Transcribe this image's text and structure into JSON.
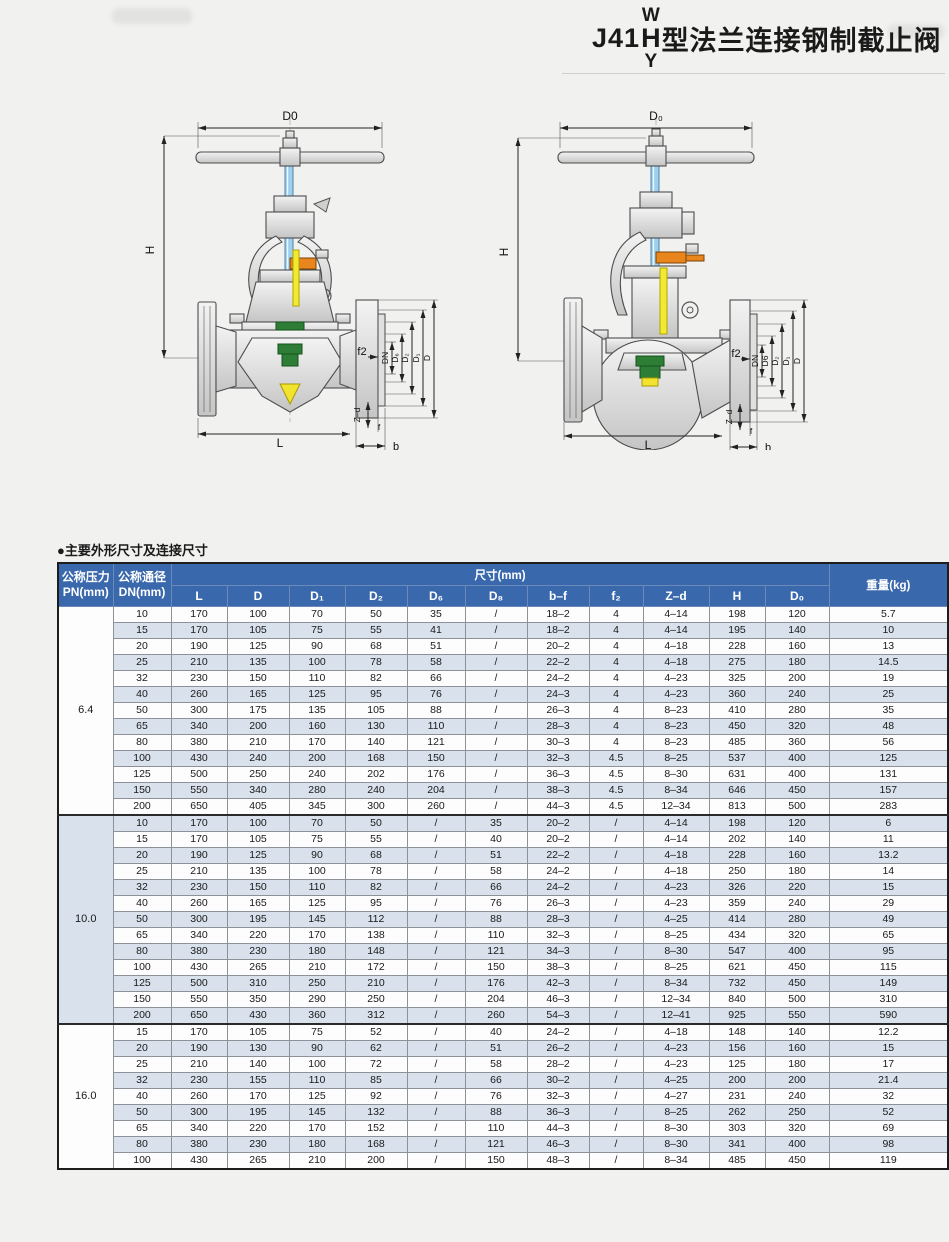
{
  "title": {
    "prefix": "J41",
    "stack_top": "W",
    "stack_mid": "H",
    "stack_bottom": "Y",
    "suffix": "型法兰连接钢制截止阀"
  },
  "section": {
    "title": "●主要外形尺寸及连接尺寸"
  },
  "drawings": {
    "left": {
      "labels": {
        "d0": "D0",
        "h": "H",
        "f2": "f2",
        "dn": "DN",
        "d6": "D₆",
        "d2": "D₂",
        "d1": "D₁",
        "d": "D",
        "zd": "Z–d",
        "f": "f",
        "b": "b",
        "l": "L"
      }
    },
    "right": {
      "labels": {
        "d0": "D₀",
        "h": "H",
        "f2": "f2",
        "dn": "DN",
        "d6": "D6",
        "d2": "D₂",
        "d1": "D₁",
        "d": "D",
        "zd": "Z–d",
        "f": "f",
        "b": "b",
        "l": "L"
      }
    }
  },
  "table": {
    "header": {
      "pressure_line1": "公称压力",
      "pressure_line2": "PN(mm)",
      "dn_line1": "公称通径",
      "dn_line2": "DN(mm)",
      "size_group": "尺寸(mm)",
      "weight": "重量(kg)",
      "columns": [
        "L",
        "D",
        "D₁",
        "D₂",
        "D₆",
        "D₈",
        "b–f",
        "f₂",
        "Z–d",
        "H",
        "D₀"
      ]
    },
    "groups": [
      {
        "pn": "6.4",
        "rows": [
          [
            "10",
            "170",
            "100",
            "70",
            "50",
            "35",
            "/",
            "18–2",
            "4",
            "4–14",
            "198",
            "120",
            "5.7"
          ],
          [
            "15",
            "170",
            "105",
            "75",
            "55",
            "41",
            "/",
            "18–2",
            "4",
            "4–14",
            "195",
            "140",
            "10"
          ],
          [
            "20",
            "190",
            "125",
            "90",
            "68",
            "51",
            "/",
            "20–2",
            "4",
            "4–18",
            "228",
            "160",
            "13"
          ],
          [
            "25",
            "210",
            "135",
            "100",
            "78",
            "58",
            "/",
            "22–2",
            "4",
            "4–18",
            "275",
            "180",
            "14.5"
          ],
          [
            "32",
            "230",
            "150",
            "110",
            "82",
            "66",
            "/",
            "24–2",
            "4",
            "4–23",
            "325",
            "200",
            "19"
          ],
          [
            "40",
            "260",
            "165",
            "125",
            "95",
            "76",
            "/",
            "24–3",
            "4",
            "4–23",
            "360",
            "240",
            "25"
          ],
          [
            "50",
            "300",
            "175",
            "135",
            "105",
            "88",
            "/",
            "26–3",
            "4",
            "8–23",
            "410",
            "280",
            "35"
          ],
          [
            "65",
            "340",
            "200",
            "160",
            "130",
            "110",
            "/",
            "28–3",
            "4",
            "8–23",
            "450",
            "320",
            "48"
          ],
          [
            "80",
            "380",
            "210",
            "170",
            "140",
            "121",
            "/",
            "30–3",
            "4",
            "8–23",
            "485",
            "360",
            "56"
          ],
          [
            "100",
            "430",
            "240",
            "200",
            "168",
            "150",
            "/",
            "32–3",
            "4.5",
            "8–25",
            "537",
            "400",
            "125"
          ],
          [
            "125",
            "500",
            "250",
            "240",
            "202",
            "176",
            "/",
            "36–3",
            "4.5",
            "8–30",
            "631",
            "400",
            "131"
          ],
          [
            "150",
            "550",
            "340",
            "280",
            "240",
            "204",
            "/",
            "38–3",
            "4.5",
            "8–34",
            "646",
            "450",
            "157"
          ],
          [
            "200",
            "650",
            "405",
            "345",
            "300",
            "260",
            "/",
            "44–3",
            "4.5",
            "12–34",
            "813",
            "500",
            "283"
          ]
        ]
      },
      {
        "pn": "10.0",
        "rows": [
          [
            "10",
            "170",
            "100",
            "70",
            "50",
            "/",
            "35",
            "20–2",
            "/",
            "4–14",
            "198",
            "120",
            "6"
          ],
          [
            "15",
            "170",
            "105",
            "75",
            "55",
            "/",
            "40",
            "20–2",
            "/",
            "4–14",
            "202",
            "140",
            "11"
          ],
          [
            "20",
            "190",
            "125",
            "90",
            "68",
            "/",
            "51",
            "22–2",
            "/",
            "4–18",
            "228",
            "160",
            "13.2"
          ],
          [
            "25",
            "210",
            "135",
            "100",
            "78",
            "/",
            "58",
            "24–2",
            "/",
            "4–18",
            "250",
            "180",
            "14"
          ],
          [
            "32",
            "230",
            "150",
            "110",
            "82",
            "/",
            "66",
            "24–2",
            "/",
            "4–23",
            "326",
            "220",
            "15"
          ],
          [
            "40",
            "260",
            "165",
            "125",
            "95",
            "/",
            "76",
            "26–3",
            "/",
            "4–23",
            "359",
            "240",
            "29"
          ],
          [
            "50",
            "300",
            "195",
            "145",
            "112",
            "/",
            "88",
            "28–3",
            "/",
            "4–25",
            "414",
            "280",
            "49"
          ],
          [
            "65",
            "340",
            "220",
            "170",
            "138",
            "/",
            "110",
            "32–3",
            "/",
            "8–25",
            "434",
            "320",
            "65"
          ],
          [
            "80",
            "380",
            "230",
            "180",
            "148",
            "/",
            "121",
            "34–3",
            "/",
            "8–30",
            "547",
            "400",
            "95"
          ],
          [
            "100",
            "430",
            "265",
            "210",
            "172",
            "/",
            "150",
            "38–3",
            "/",
            "8–25",
            "621",
            "450",
            "115"
          ],
          [
            "125",
            "500",
            "310",
            "250",
            "210",
            "/",
            "176",
            "42–3",
            "/",
            "8–34",
            "732",
            "450",
            "149"
          ],
          [
            "150",
            "550",
            "350",
            "290",
            "250",
            "/",
            "204",
            "46–3",
            "/",
            "12–34",
            "840",
            "500",
            "310"
          ],
          [
            "200",
            "650",
            "430",
            "360",
            "312",
            "/",
            "260",
            "54–3",
            "/",
            "12–41",
            "925",
            "550",
            "590"
          ]
        ]
      },
      {
        "pn": "16.0",
        "rows": [
          [
            "15",
            "170",
            "105",
            "75",
            "52",
            "/",
            "40",
            "24–2",
            "/",
            "4–18",
            "148",
            "140",
            "12.2"
          ],
          [
            "20",
            "190",
            "130",
            "90",
            "62",
            "/",
            "51",
            "26–2",
            "/",
            "4–23",
            "156",
            "160",
            "15"
          ],
          [
            "25",
            "210",
            "140",
            "100",
            "72",
            "/",
            "58",
            "28–2",
            "/",
            "4–23",
            "125",
            "180",
            "17"
          ],
          [
            "32",
            "230",
            "155",
            "110",
            "85",
            "/",
            "66",
            "30–2",
            "/",
            "4–25",
            "200",
            "200",
            "21.4"
          ],
          [
            "40",
            "260",
            "170",
            "125",
            "92",
            "/",
            "76",
            "32–3",
            "/",
            "4–27",
            "231",
            "240",
            "32"
          ],
          [
            "50",
            "300",
            "195",
            "145",
            "132",
            "/",
            "88",
            "36–3",
            "/",
            "8–25",
            "262",
            "250",
            "52"
          ],
          [
            "65",
            "340",
            "220",
            "170",
            "152",
            "/",
            "110",
            "44–3",
            "/",
            "8–30",
            "303",
            "320",
            "69"
          ],
          [
            "80",
            "380",
            "230",
            "180",
            "168",
            "/",
            "121",
            "46–3",
            "/",
            "8–30",
            "341",
            "400",
            "98"
          ],
          [
            "100",
            "430",
            "265",
            "210",
            "200",
            "/",
            "150",
            "48–3",
            "/",
            "8–34",
            "485",
            "450",
            "119"
          ]
        ]
      }
    ]
  }
}
